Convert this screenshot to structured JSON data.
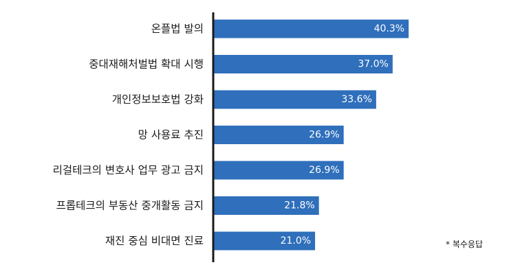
{
  "chart_data": {
    "type": "bar",
    "orientation": "horizontal",
    "categories": [
      "온플법 발의",
      "중대재해처벌법 확대 시행",
      "개인정보보호법 강화",
      "망 사용료 추진",
      "리걸테크의 변호사 업무 광고 금지",
      "프롭테크의 부동산 중개활동 금지",
      "재진 중심 비대면 진료"
    ],
    "values": [
      40.3,
      37.0,
      33.6,
      26.9,
      26.9,
      21.8,
      21.0
    ],
    "value_labels": [
      "40.3%",
      "37.0%",
      "33.6%",
      "26.9%",
      "26.9%",
      "21.8%",
      "21.0%"
    ],
    "unit": "%",
    "xlim": [
      0,
      100
    ],
    "grid": false,
    "bar_color": "#2f6fbb",
    "axis_color": "#1a1a1a"
  },
  "note": "* 복수응답"
}
